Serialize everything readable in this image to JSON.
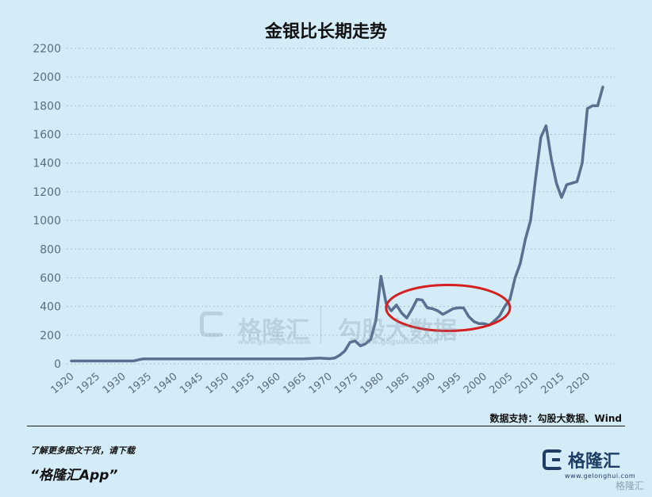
{
  "chart_data": {
    "type": "line",
    "title": "金银比长期走势",
    "xlabel": "",
    "ylabel": "",
    "ylim": [
      0,
      2200
    ],
    "xlim": [
      1920,
      2023
    ],
    "y_ticks": [
      0,
      200,
      400,
      600,
      800,
      1000,
      1200,
      1400,
      1600,
      1800,
      2000,
      2200
    ],
    "x_ticks": [
      1920,
      1925,
      1930,
      1935,
      1940,
      1945,
      1950,
      1955,
      1960,
      1965,
      1970,
      1975,
      1980,
      1985,
      1990,
      1995,
      2000,
      2005,
      2010,
      2015,
      2020
    ],
    "grid": true,
    "line_color": "#5a7090",
    "annotation": "red ellipse around 1982-2005",
    "series": [
      {
        "x": [
          1920,
          1925,
          1930,
          1932,
          1933,
          1934,
          1935,
          1940,
          1945,
          1950,
          1955,
          1960,
          1965,
          1967,
          1968,
          1970,
          1971,
          1972,
          1973,
          1974,
          1975,
          1976,
          1977,
          1978,
          1979,
          1980,
          1981,
          1982,
          1983,
          1984,
          1985,
          1986,
          1987,
          1988,
          1989,
          1990,
          1991,
          1992,
          1993,
          1994,
          1995,
          1996,
          1997,
          1998,
          1999,
          2000,
          2001,
          2002,
          2003,
          2004,
          2005,
          2006,
          2007,
          2008,
          2009,
          2010,
          2011,
          2012,
          2013,
          2014,
          2015,
          2016,
          2017,
          2018,
          2019,
          2020,
          2021,
          2022,
          2023
        ],
        "values": [
          20,
          20,
          20,
          20,
          28,
          35,
          35,
          35,
          35,
          35,
          35,
          35,
          35,
          38,
          40,
          36,
          40,
          60,
          90,
          150,
          160,
          125,
          140,
          170,
          300,
          610,
          420,
          370,
          410,
          355,
          320,
          380,
          450,
          445,
          390,
          385,
          370,
          345,
          365,
          385,
          390,
          390,
          330,
          295,
          280,
          280,
          270,
          300,
          335,
          400,
          450,
          600,
          700,
          870,
          1000,
          1300,
          1580,
          1660,
          1430,
          1260,
          1160,
          1250,
          1260,
          1270,
          1400,
          1780,
          1800,
          1800,
          1930
        ]
      }
    ],
    "highlight_ellipse": {
      "x_center": 1993,
      "y_center": 390,
      "x_radius": 12,
      "y_radius": 160
    }
  },
  "source_text": "数据支持：勾股大数据、Wind",
  "promo": {
    "line1": "了解更多图文干货，请下载",
    "line2": "“格隆汇App”"
  },
  "logo": {
    "name": "格隆汇",
    "url": "www.gelonghui.com"
  },
  "watermark": {
    "left": "格隆汇",
    "left_url": "www.gelonghui.com",
    "right": "勾股大数据",
    "right_url": "www.gogudata.com"
  },
  "corner_watermark": "格隆汇"
}
